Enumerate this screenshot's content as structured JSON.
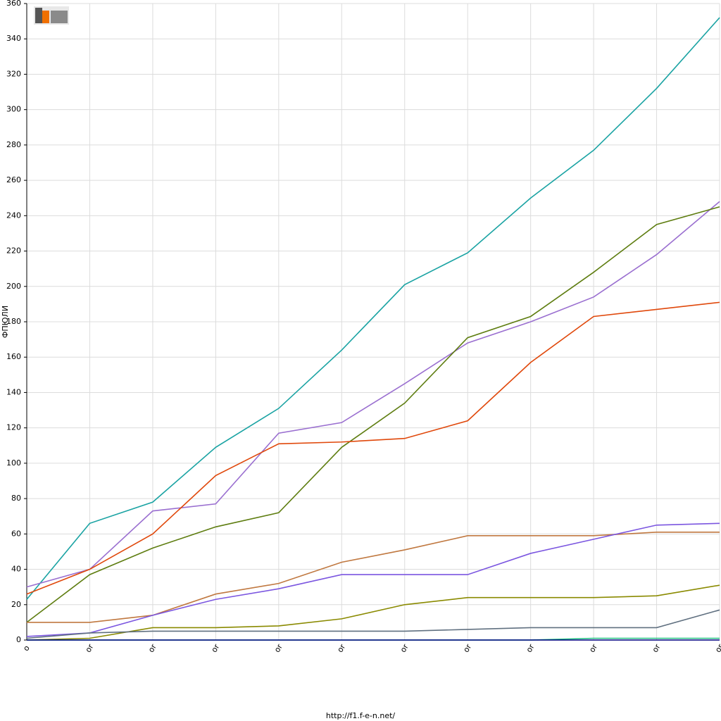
{
  "chart_data": {
    "type": "line",
    "y_label": "ФПЮЛИ",
    "footer": "http://f1.f-e-n.net/",
    "categories": [
      "o",
      "or",
      "or",
      "or",
      "or",
      "or",
      "or",
      "or",
      "or",
      "or",
      "or",
      "or"
    ],
    "ylim": [
      0,
      360
    ],
    "yticks": [
      0,
      20,
      40,
      60,
      80,
      100,
      120,
      140,
      160,
      180,
      200,
      220,
      240,
      260,
      280,
      300,
      320,
      340,
      360
    ],
    "grid": true,
    "series": [
      {
        "color": "#1aa3a3",
        "values": [
          23,
          66,
          78,
          109,
          131,
          164,
          201,
          219,
          250,
          277,
          312,
          352
        ]
      },
      {
        "color": "#9a6fd0",
        "values": [
          30,
          40,
          73,
          77,
          117,
          123,
          145,
          168,
          180,
          194,
          218,
          248
        ]
      },
      {
        "color": "#5e7d10",
        "values": [
          10,
          37,
          52,
          64,
          72,
          109,
          134,
          171,
          183,
          208,
          235,
          245
        ]
      },
      {
        "color": "#e0480b",
        "values": [
          26,
          40,
          60,
          93,
          111,
          112,
          114,
          124,
          157,
          183,
          187,
          191
        ]
      },
      {
        "color": "#c07840",
        "values": [
          10,
          10,
          14,
          26,
          32,
          44,
          51,
          59,
          59,
          59,
          61,
          61
        ]
      },
      {
        "color": "#7b56e0",
        "values": [
          2,
          4,
          14,
          23,
          29,
          37,
          37,
          37,
          49,
          57,
          65,
          66
        ]
      },
      {
        "color": "#8a8a00",
        "values": [
          0,
          1,
          7,
          7,
          8,
          12,
          20,
          24,
          24,
          24,
          25,
          31
        ]
      },
      {
        "color": "#607080",
        "values": [
          1,
          4,
          5,
          5,
          5,
          5,
          5,
          6,
          7,
          7,
          7,
          17
        ]
      },
      {
        "color": "#20c080",
        "values": [
          0,
          0,
          0,
          0,
          0,
          0,
          0,
          0,
          0,
          1,
          1,
          1
        ]
      },
      {
        "color": "#000080",
        "values": [
          0,
          0,
          0,
          0,
          0,
          0,
          0,
          0,
          0,
          0,
          0,
          0
        ]
      }
    ]
  }
}
